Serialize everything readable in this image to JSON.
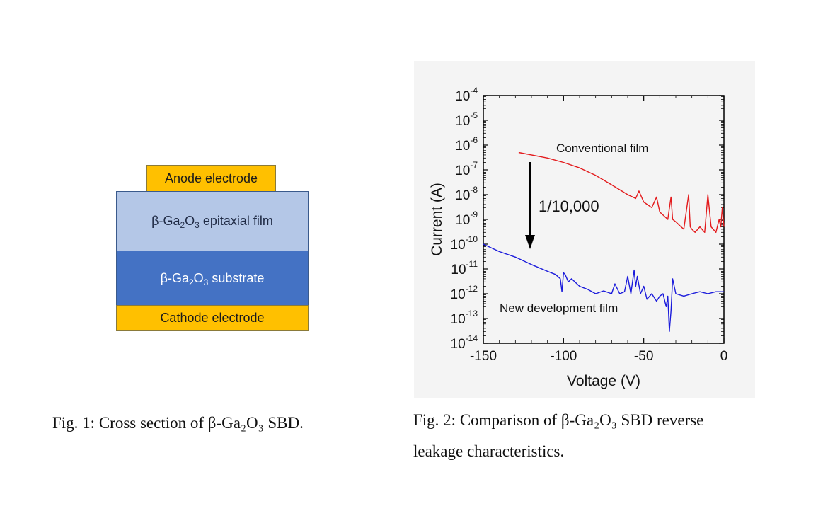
{
  "fig1": {
    "anode": "Anode electrode",
    "epi_prefix": "β-Ga",
    "epi_sub1": "2",
    "epi_mid": "O",
    "epi_sub2": "3",
    "epi_suffix": " epitaxial film",
    "substrate_prefix": "β-Ga",
    "substrate_sub1": "2",
    "substrate_mid": "O",
    "substrate_sub2": "3",
    "substrate_suffix": " substrate",
    "cathode": "Cathode electrode",
    "colors": {
      "electrode": "#ffc000",
      "epitaxial": "#b4c7e7",
      "substrate": "#4472c4"
    }
  },
  "captions": {
    "fig1": "Fig. 1: Cross section of β-Ga₂O₃ SBD.",
    "fig2_line1": "Fig. 2: Comparison of β-Ga₂O₃ SBD reverse",
    "fig2_line2": "leakage characteristics."
  },
  "chart_data": {
    "type": "line",
    "xlabel": "Voltage (V)",
    "ylabel": "Current (A)",
    "xlim": [
      -150,
      0
    ],
    "ylim": [
      1e-14,
      0.0001
    ],
    "yscale": "log",
    "xticks": [
      "-150",
      "-100",
      "-50",
      "0"
    ],
    "ytick_exponents": [
      "-14",
      "-13",
      "-12",
      "-11",
      "-10",
      "-9",
      "-8",
      "-7",
      "-6",
      "-5",
      "-4"
    ],
    "ytick_base": "10",
    "annotation": "1/10,000",
    "series": [
      {
        "name": "Conventional film",
        "color": "#e31a1c",
        "x": [
          -128,
          -120,
          -110,
          -100,
          -90,
          -80,
          -70,
          -60,
          -55,
          -53,
          -50,
          -45,
          -42,
          -40,
          -38,
          -35,
          -33,
          -32,
          -30,
          -28,
          -25,
          -22,
          -21,
          -20,
          -18,
          -15,
          -12,
          -10,
          -8,
          -5,
          -3,
          -2,
          -1,
          0
        ],
        "y": [
          5e-07,
          4e-07,
          3e-07,
          2e-07,
          1.2e-07,
          6e-08,
          2.5e-08,
          1e-08,
          7e-09,
          1.4e-08,
          5e-09,
          3e-09,
          8e-09,
          2e-09,
          1.5e-09,
          1e-09,
          8e-09,
          1e-09,
          8e-10,
          6e-10,
          4e-10,
          1e-08,
          5e-10,
          4e-10,
          3e-10,
          5e-10,
          3e-10,
          1e-08,
          5e-10,
          3e-10,
          1e-09,
          5e-10,
          3e-09,
          5e-10
        ]
      },
      {
        "name": "New development film",
        "color": "#1a1adb",
        "x": [
          -150,
          -140,
          -130,
          -120,
          -110,
          -105,
          -102,
          -101,
          -100,
          -99,
          -97,
          -95,
          -90,
          -85,
          -80,
          -75,
          -70,
          -68,
          -65,
          -62,
          -60,
          -58,
          -56,
          -55,
          -54,
          -52,
          -50,
          -48,
          -45,
          -42,
          -40,
          -38,
          -36,
          -35,
          -34,
          -33,
          -32,
          -30,
          -25,
          -20,
          -15,
          -10,
          -5,
          0
        ],
        "y": [
          1e-10,
          5e-11,
          3e-11,
          1.5e-11,
          8e-12,
          6e-12,
          4e-12,
          1.2e-12,
          7e-12,
          6e-12,
          3e-12,
          4e-12,
          2e-12,
          1.5e-12,
          1e-12,
          1.3e-12,
          1e-12,
          2.5e-12,
          1e-12,
          1.2e-12,
          5e-12,
          1e-12,
          9e-12,
          2e-12,
          5e-12,
          1e-12,
          2e-12,
          6e-13,
          1e-12,
          5e-13,
          8e-13,
          1e-12,
          3e-13,
          8e-13,
          3e-14,
          2e-13,
          4e-12,
          1e-12,
          8e-13,
          1e-12,
          1.2e-12,
          1e-12,
          1.2e-12,
          1.2e-12
        ]
      }
    ],
    "labels": {
      "conventional": "Conventional film",
      "new": "New development film"
    }
  }
}
